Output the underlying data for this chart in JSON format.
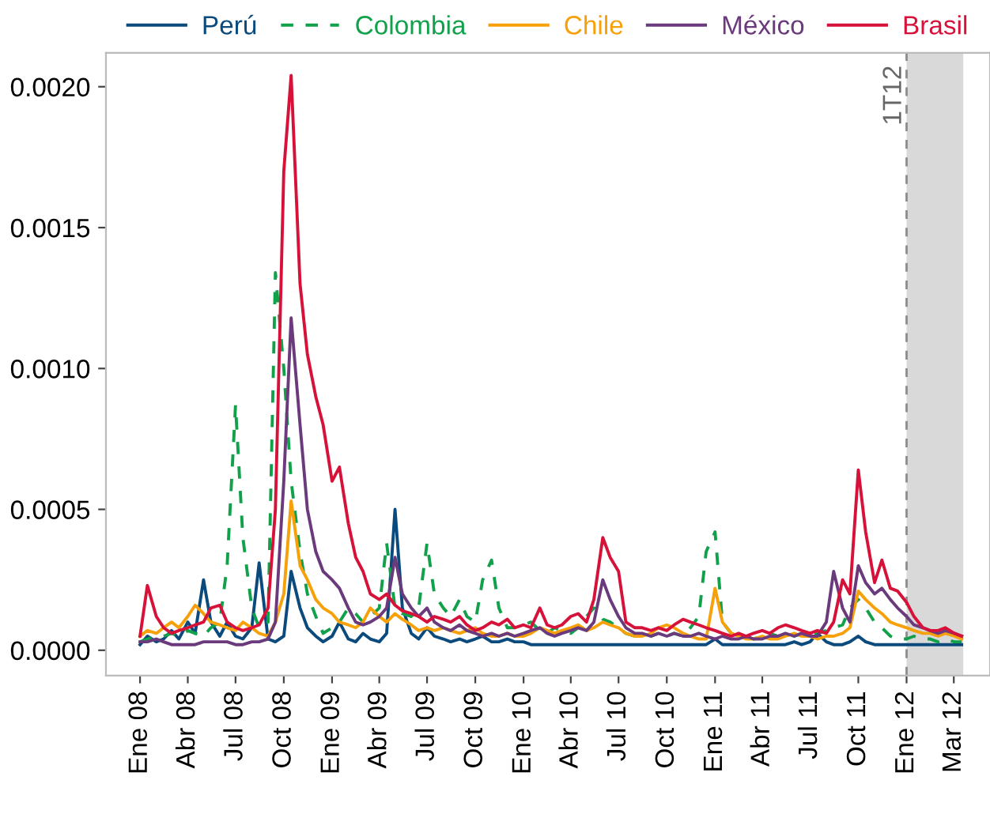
{
  "chart_data": {
    "type": "line",
    "x": [
      "2008-01-01",
      "2008-01-15",
      "2008-02-01",
      "2008-02-15",
      "2008-03-01",
      "2008-03-15",
      "2008-04-01",
      "2008-04-15",
      "2008-05-01",
      "2008-05-15",
      "2008-06-01",
      "2008-06-15",
      "2008-07-01",
      "2008-07-15",
      "2008-08-01",
      "2008-08-15",
      "2008-09-01",
      "2008-09-15",
      "2008-10-01",
      "2008-10-15",
      "2008-11-01",
      "2008-11-15",
      "2008-12-01",
      "2008-12-15",
      "2009-01-01",
      "2009-01-15",
      "2009-02-01",
      "2009-02-15",
      "2009-03-01",
      "2009-03-15",
      "2009-04-01",
      "2009-04-15",
      "2009-05-01",
      "2009-05-15",
      "2009-06-01",
      "2009-06-15",
      "2009-07-01",
      "2009-07-15",
      "2009-08-01",
      "2009-08-15",
      "2009-09-01",
      "2009-09-15",
      "2009-10-01",
      "2009-10-15",
      "2009-11-01",
      "2009-11-15",
      "2009-12-01",
      "2009-12-15",
      "2010-01-01",
      "2010-01-15",
      "2010-02-01",
      "2010-02-15",
      "2010-03-01",
      "2010-03-15",
      "2010-04-01",
      "2010-04-15",
      "2010-05-01",
      "2010-05-15",
      "2010-06-01",
      "2010-06-15",
      "2010-07-01",
      "2010-07-15",
      "2010-08-01",
      "2010-08-15",
      "2010-09-01",
      "2010-09-15",
      "2010-10-01",
      "2010-10-15",
      "2010-11-01",
      "2010-11-15",
      "2010-12-01",
      "2010-12-15",
      "2011-01-01",
      "2011-01-15",
      "2011-02-01",
      "2011-02-15",
      "2011-03-01",
      "2011-03-15",
      "2011-04-01",
      "2011-04-15",
      "2011-05-01",
      "2011-05-15",
      "2011-06-01",
      "2011-06-15",
      "2011-07-01",
      "2011-07-15",
      "2011-08-01",
      "2011-08-15",
      "2011-09-01",
      "2011-09-15",
      "2011-10-01",
      "2011-10-15",
      "2011-11-01",
      "2011-11-15",
      "2011-12-01",
      "2011-12-15",
      "2012-01-01",
      "2012-01-15",
      "2012-02-01",
      "2012-02-15",
      "2012-03-01",
      "2012-03-15",
      "2012-04-01",
      "2012-04-15"
    ],
    "series": [
      {
        "name": "Perú",
        "color": "#0b4a7d",
        "line_style": "solid",
        "values": [
          2e-05,
          5e-05,
          3e-05,
          4e-05,
          7e-05,
          4e-05,
          0.0001,
          6e-05,
          0.00025,
          0.0001,
          5e-05,
          0.0001,
          5e-05,
          4e-05,
          8e-05,
          0.00031,
          4e-05,
          3e-05,
          5e-05,
          0.00028,
          0.00015,
          8e-05,
          5e-05,
          3e-05,
          5e-05,
          0.0001,
          4e-05,
          3e-05,
          6e-05,
          4e-05,
          3e-05,
          6e-05,
          0.0005,
          0.00015,
          6e-05,
          4e-05,
          8e-05,
          5e-05,
          4e-05,
          3e-05,
          4e-05,
          3e-05,
          4e-05,
          5e-05,
          3e-05,
          3e-05,
          4e-05,
          3e-05,
          3e-05,
          2e-05,
          2e-05,
          2e-05,
          2e-05,
          2e-05,
          2e-05,
          2e-05,
          2e-05,
          2e-05,
          2e-05,
          2e-05,
          2e-05,
          2e-05,
          2e-05,
          2e-05,
          2e-05,
          2e-05,
          2e-05,
          2e-05,
          2e-05,
          2e-05,
          2e-05,
          2e-05,
          4e-05,
          2e-05,
          2e-05,
          2e-05,
          2e-05,
          2e-05,
          2e-05,
          2e-05,
          2e-05,
          2e-05,
          3e-05,
          2e-05,
          3e-05,
          6e-05,
          3e-05,
          2e-05,
          2e-05,
          3e-05,
          5e-05,
          3e-05,
          2e-05,
          2e-05,
          2e-05,
          2e-05,
          2e-05,
          2e-05,
          2e-05,
          2e-05,
          2e-05,
          2e-05,
          2e-05,
          2e-05
        ]
      },
      {
        "name": "Colombia",
        "color": "#12a14b",
        "line_style": "dashed",
        "values": [
          3e-05,
          4e-05,
          5e-05,
          5e-05,
          6e-05,
          5e-05,
          7e-05,
          6e-05,
          5e-05,
          8e-05,
          0.0001,
          0.0003,
          0.00087,
          0.0004,
          0.00015,
          8e-05,
          0.0001,
          0.00134,
          0.001,
          0.0006,
          0.00035,
          0.0002,
          0.00012,
          6e-05,
          8e-05,
          0.0001,
          0.00015,
          0.00013,
          0.0001,
          0.00012,
          0.00015,
          0.00038,
          0.00015,
          0.00013,
          0.00012,
          0.00015,
          0.00038,
          0.0002,
          0.00015,
          0.00012,
          0.00018,
          0.00012,
          0.0001,
          0.00025,
          0.00032,
          0.00015,
          8e-05,
          8e-05,
          9e-05,
          0.0001,
          7e-05,
          6e-05,
          8e-05,
          7e-05,
          6e-05,
          8e-05,
          0.00012,
          0.00015,
          0.00011,
          0.0001,
          8e-05,
          6e-05,
          5e-05,
          6e-05,
          5e-05,
          6e-05,
          5e-05,
          6e-05,
          5e-05,
          8e-05,
          0.00012,
          0.00035,
          0.00042,
          0.0001,
          6e-05,
          5e-05,
          5e-05,
          4e-05,
          5e-05,
          6e-05,
          5e-05,
          6e-05,
          5e-05,
          6e-05,
          5e-05,
          6e-05,
          7e-05,
          8e-05,
          9e-05,
          0.00015,
          0.00018,
          0.00015,
          0.0001,
          8e-05,
          5e-05,
          4e-05,
          4e-05,
          5e-05,
          4e-05,
          4e-05,
          3e-05,
          4e-05,
          3e-05,
          3e-05
        ]
      },
      {
        "name": "Chile",
        "color": "#f7a10a",
        "line_style": "solid",
        "values": [
          5e-05,
          7e-05,
          6e-05,
          8e-05,
          0.0001,
          8e-05,
          0.00012,
          0.00016,
          0.00013,
          0.0001,
          9e-05,
          8e-05,
          7e-05,
          0.0001,
          8e-05,
          6e-05,
          5e-05,
          0.0001,
          0.0002,
          0.00053,
          0.0003,
          0.00025,
          0.00018,
          0.00015,
          0.00013,
          0.0001,
          9e-05,
          8e-05,
          0.0001,
          0.00015,
          0.00012,
          0.0001,
          0.00013,
          0.00011,
          9e-05,
          7e-05,
          8e-05,
          7e-05,
          8e-05,
          7e-05,
          6e-05,
          7e-05,
          8e-05,
          6e-05,
          5e-05,
          5e-05,
          6e-05,
          5e-05,
          5e-05,
          6e-05,
          8e-05,
          7e-05,
          6e-05,
          7e-05,
          8e-05,
          9e-05,
          7e-05,
          8e-05,
          0.0001,
          9e-05,
          8e-05,
          6e-05,
          5e-05,
          5e-05,
          6e-05,
          8e-05,
          9e-05,
          8e-05,
          6e-05,
          5e-05,
          4e-05,
          4e-05,
          0.00022,
          0.0001,
          6e-05,
          5e-05,
          4e-05,
          4e-05,
          5e-05,
          4e-05,
          4e-05,
          5e-05,
          6e-05,
          5e-05,
          5e-05,
          4e-05,
          5e-05,
          5e-05,
          6e-05,
          8e-05,
          0.00021,
          0.00018,
          0.00015,
          0.00013,
          0.0001,
          9e-05,
          8e-05,
          7e-05,
          6e-05,
          6e-05,
          5e-05,
          6e-05,
          5e-05,
          4e-05
        ]
      },
      {
        "name": "México",
        "color": "#6b3a7d",
        "line_style": "solid",
        "values": [
          3e-05,
          3e-05,
          4e-05,
          3e-05,
          2e-05,
          2e-05,
          2e-05,
          2e-05,
          3e-05,
          3e-05,
          3e-05,
          3e-05,
          2e-05,
          2e-05,
          3e-05,
          3e-05,
          4e-05,
          0.0001,
          0.0006,
          0.00118,
          0.0008,
          0.0005,
          0.00035,
          0.00028,
          0.00025,
          0.00022,
          0.00015,
          0.0001,
          9e-05,
          0.0001,
          0.00012,
          0.00015,
          0.00033,
          0.0002,
          0.00015,
          0.00012,
          0.00015,
          0.0001,
          8e-05,
          7e-05,
          9e-05,
          7e-05,
          6e-05,
          5e-05,
          6e-05,
          5e-05,
          6e-05,
          5e-05,
          6e-05,
          7e-05,
          8e-05,
          6e-05,
          5e-05,
          6e-05,
          7e-05,
          8e-05,
          7e-05,
          0.0001,
          0.00025,
          0.00018,
          0.00012,
          8e-05,
          6e-05,
          6e-05,
          5e-05,
          6e-05,
          5e-05,
          6e-05,
          5e-05,
          5e-05,
          6e-05,
          5e-05,
          4e-05,
          5e-05,
          4e-05,
          4e-05,
          5e-05,
          4e-05,
          4e-05,
          5e-05,
          5e-05,
          6e-05,
          5e-05,
          6e-05,
          5e-05,
          5e-05,
          0.0001,
          0.00028,
          0.00015,
          0.0001,
          0.0003,
          0.00024,
          0.0002,
          0.00022,
          0.00018,
          0.00015,
          0.00012,
          9e-05,
          8e-05,
          7e-05,
          6e-05,
          7e-05,
          6e-05,
          5e-05
        ]
      },
      {
        "name": "Brasil",
        "color": "#d7123a",
        "line_style": "solid",
        "values": [
          5e-05,
          0.00023,
          0.00012,
          8e-05,
          6e-05,
          7e-05,
          8e-05,
          9e-05,
          0.0001,
          0.00015,
          0.00016,
          0.0001,
          8e-05,
          7e-05,
          8e-05,
          9e-05,
          0.00015,
          0.0005,
          0.0017,
          0.00204,
          0.0013,
          0.00105,
          0.0009,
          0.0008,
          0.0006,
          0.00065,
          0.00045,
          0.00033,
          0.00028,
          0.0002,
          0.00018,
          0.0002,
          0.00016,
          0.00014,
          0.00013,
          0.00012,
          0.0001,
          0.00012,
          0.00011,
          0.0001,
          0.00012,
          9e-05,
          7e-05,
          8e-05,
          0.0001,
          9e-05,
          0.00011,
          8e-05,
          9e-05,
          8e-05,
          0.00015,
          9e-05,
          8e-05,
          9e-05,
          0.00012,
          0.00013,
          0.0001,
          0.00018,
          0.0004,
          0.00033,
          0.00028,
          0.0001,
          8e-05,
          8e-05,
          7e-05,
          8e-05,
          7e-05,
          9e-05,
          0.00011,
          0.0001,
          9e-05,
          8e-05,
          7e-05,
          6e-05,
          5e-05,
          6e-05,
          5e-05,
          6e-05,
          7e-05,
          6e-05,
          8e-05,
          9e-05,
          8e-05,
          7e-05,
          6e-05,
          7e-05,
          6e-05,
          0.0001,
          0.00025,
          0.0002,
          0.00064,
          0.00042,
          0.00024,
          0.00032,
          0.00022,
          0.00021,
          0.00017,
          0.00012,
          8e-05,
          7e-05,
          7e-05,
          8e-05,
          6e-05,
          5e-05
        ]
      }
    ],
    "xlim": [
      "2007-10-28",
      "2012-06-08"
    ],
    "xticks": [
      {
        "value": "2008-01-01",
        "label": "Ene 08"
      },
      {
        "value": "2008-04-01",
        "label": "Abr 08"
      },
      {
        "value": "2008-07-01",
        "label": "Jul 08"
      },
      {
        "value": "2008-10-01",
        "label": "Oct 08"
      },
      {
        "value": "2009-01-01",
        "label": "Ene 09"
      },
      {
        "value": "2009-04-01",
        "label": "Abr 09"
      },
      {
        "value": "2009-07-01",
        "label": "Jul 09"
      },
      {
        "value": "2009-10-01",
        "label": "Oct 09"
      },
      {
        "value": "2010-01-01",
        "label": "Ene 10"
      },
      {
        "value": "2010-04-01",
        "label": "Abr 10"
      },
      {
        "value": "2010-07-01",
        "label": "Jul 10"
      },
      {
        "value": "2010-10-01",
        "label": "Oct 10"
      },
      {
        "value": "2011-01-01",
        "label": "Ene 11"
      },
      {
        "value": "2011-04-01",
        "label": "Abr 11"
      },
      {
        "value": "2011-07-01",
        "label": "Jul 11"
      },
      {
        "value": "2011-10-01",
        "label": "Oct 11"
      },
      {
        "value": "2012-01-01",
        "label": "Ene 12"
      },
      {
        "value": "2012-03-31",
        "label": "Mar 12"
      }
    ],
    "ylim": [
      -9e-05,
      0.00212
    ],
    "yticks": [
      {
        "value": 0,
        "label": "0.0000"
      },
      {
        "value": 0.0005,
        "label": "0.0005"
      },
      {
        "value": 0.001,
        "label": "0.0010"
      },
      {
        "value": 0.0015,
        "label": "0.0015"
      },
      {
        "value": 0.002,
        "label": "0.0020"
      }
    ],
    "ref_lines": [
      {
        "axis": "x",
        "value": "2012-01-01",
        "label": "1T12",
        "color": "#8c8c8c",
        "line_style": "dashed"
      }
    ],
    "bands": [
      {
        "axis": "x",
        "from": "2012-01-01",
        "to": "2012-04-18",
        "label": null,
        "color": "#d9d9d9"
      }
    ],
    "grid": false,
    "legend": "top",
    "marker": "none"
  }
}
